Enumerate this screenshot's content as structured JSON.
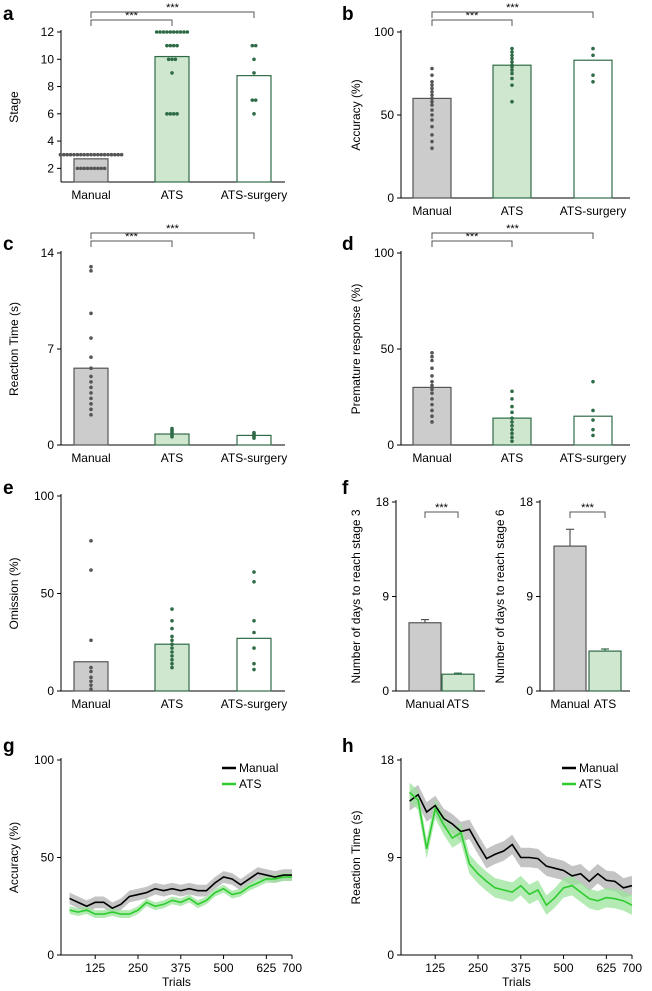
{
  "colors": {
    "manual_fill": "#cccccc",
    "manual_edge": "#555555",
    "manual_dot": "#555555",
    "ats_fill": "#cfe6cf",
    "ats_edge": "#2f6b46",
    "ats_dot": "#2f6b46",
    "surg_fill": "#ffffff",
    "surg_edge": "#2f6b46",
    "surg_dot": "#2f6b46",
    "line_manual": "#000000",
    "band_manual": "#b0b0b0",
    "line_ats": "#2ecc2e",
    "band_ats": "#9be39b",
    "axis": "#000000"
  },
  "chart_data": [
    {
      "panel": "a",
      "type": "bar",
      "ylabel": "Stage",
      "categories": [
        "Manual",
        "ATS",
        "ATS-surgery"
      ],
      "values": [
        2.7,
        10.2,
        8.8
      ],
      "ylim": [
        1,
        12
      ],
      "yticks": [
        2,
        4,
        6,
        8,
        10,
        12
      ],
      "points": [
        [
          2,
          2,
          2,
          2,
          2,
          2,
          2,
          2,
          2,
          3,
          3,
          3,
          3,
          3,
          3,
          3,
          3,
          3,
          3,
          3,
          3,
          3,
          3,
          3,
          3,
          3,
          3,
          3
        ],
        [
          6,
          6,
          6,
          6,
          9,
          10,
          10,
          10,
          11,
          11,
          11,
          11,
          12,
          12,
          12,
          12,
          12,
          12,
          12,
          12,
          12,
          12
        ],
        [
          6,
          7,
          7,
          9,
          10,
          11,
          11
        ]
      ],
      "sig": [
        {
          "from": 0,
          "to": 1,
          "label": "***"
        },
        {
          "from": 0,
          "to": 2,
          "label": "***"
        }
      ]
    },
    {
      "panel": "b",
      "type": "bar",
      "ylabel": "Accuracy (%)",
      "categories": [
        "Manual",
        "ATS",
        "ATS-surgery"
      ],
      "values": [
        60,
        80,
        83
      ],
      "ylim": [
        0,
        100
      ],
      "yticks": [
        0,
        50,
        100
      ],
      "points": [
        [
          30,
          34,
          38,
          43,
          47,
          50,
          53,
          56,
          58,
          60,
          62,
          64,
          66,
          68,
          70,
          74,
          78
        ],
        [
          58,
          68,
          72,
          75,
          77,
          79,
          80,
          82,
          84,
          86,
          88,
          90
        ],
        [
          70,
          74,
          86,
          90
        ]
      ],
      "sig": [
        {
          "from": 0,
          "to": 1,
          "label": "***"
        },
        {
          "from": 0,
          "to": 2,
          "label": "***"
        }
      ]
    },
    {
      "panel": "c",
      "type": "bar",
      "ylabel": "Reaction Time (s)",
      "categories": [
        "Manual",
        "ATS",
        "ATS-surgery"
      ],
      "values": [
        5.6,
        0.8,
        0.7
      ],
      "ylim": [
        0,
        14
      ],
      "yticks": [
        0,
        7,
        14
      ],
      "points": [
        [
          2.2,
          2.6,
          3.0,
          3.4,
          3.8,
          4.2,
          4.6,
          5.0,
          5.6,
          6.4,
          7.8,
          9.6,
          12.7,
          13.0
        ],
        [
          0.6,
          0.7,
          0.8,
          0.9,
          1.0,
          1.1,
          1.2
        ],
        [
          0.5,
          0.6,
          0.7,
          0.8,
          0.9
        ]
      ],
      "sig": [
        {
          "from": 0,
          "to": 1,
          "label": "***"
        },
        {
          "from": 0,
          "to": 2,
          "label": "***"
        }
      ]
    },
    {
      "panel": "d",
      "type": "bar",
      "ylabel": "Premature response     (%)",
      "categories": [
        "Manual",
        "ATS",
        "ATS-surgery"
      ],
      "values": [
        30,
        14,
        15
      ],
      "ylim": [
        0,
        100
      ],
      "yticks": [
        0,
        50,
        100
      ],
      "points": [
        [
          12,
          15,
          18,
          21,
          24,
          27,
          29,
          31,
          33,
          36,
          40,
          44,
          46,
          48
        ],
        [
          2,
          4,
          6,
          8,
          10,
          12,
          14,
          17,
          20,
          24,
          28
        ],
        [
          5,
          8,
          13,
          18,
          33
        ]
      ],
      "sig": [
        {
          "from": 0,
          "to": 1,
          "label": "***"
        },
        {
          "from": 0,
          "to": 2,
          "label": "***"
        }
      ]
    },
    {
      "panel": "e",
      "type": "bar",
      "ylabel": "Omission (%)",
      "categories": [
        "Manual",
        "ATS",
        "ATS-surgery"
      ],
      "values": [
        15,
        24,
        27
      ],
      "ylim": [
        0,
        100
      ],
      "yticks": [
        0,
        50,
        100
      ],
      "points": [
        [
          1,
          3,
          5,
          7,
          10,
          12,
          26,
          62,
          77
        ],
        [
          12,
          14,
          16,
          18,
          20,
          22,
          24,
          26,
          28,
          32,
          36,
          42
        ],
        [
          11,
          14,
          22,
          30,
          36,
          56,
          61
        ]
      ],
      "sig": []
    },
    {
      "panel": "f1",
      "type": "bar",
      "ylabel": "Number of days to reach stage 3",
      "categories": [
        "Manual",
        "ATS"
      ],
      "values": [
        6.5,
        1.6
      ],
      "errors": [
        0.3,
        0.1
      ],
      "ylim": [
        0,
        18
      ],
      "yticks": [
        0,
        9,
        18
      ],
      "sig": [
        {
          "from": 0,
          "to": 1,
          "label": "***"
        }
      ]
    },
    {
      "panel": "f2",
      "type": "bar",
      "ylabel": "Number of days to reach stage 6",
      "categories": [
        "Manual",
        "ATS"
      ],
      "values": [
        13.8,
        3.8
      ],
      "errors": [
        1.6,
        0.2
      ],
      "ylim": [
        0,
        18
      ],
      "yticks": [
        0,
        9,
        18
      ],
      "sig": [
        {
          "from": 0,
          "to": 1,
          "label": "***"
        }
      ]
    },
    {
      "panel": "g",
      "type": "line",
      "xlabel": "Trials",
      "ylabel": "Accuracy (%)",
      "xlim": [
        25,
        700
      ],
      "ylim": [
        0,
        100
      ],
      "xticks": [
        125,
        250,
        375,
        500,
        625,
        700
      ],
      "yticks": [
        0,
        50,
        100
      ],
      "x": [
        50,
        75,
        100,
        125,
        150,
        175,
        200,
        225,
        250,
        275,
        300,
        325,
        350,
        375,
        400,
        425,
        450,
        475,
        500,
        525,
        550,
        575,
        600,
        625,
        650,
        675,
        700
      ],
      "series": [
        {
          "name": "Manual",
          "values": [
            29,
            27,
            25,
            27,
            27,
            24,
            26,
            30,
            31,
            32,
            34,
            33,
            34,
            33,
            34,
            33,
            33,
            37,
            40,
            39,
            36,
            39,
            42,
            41,
            40,
            41,
            41
          ],
          "sem": 3
        },
        {
          "name": "ATS",
          "values": [
            23,
            22,
            23,
            21,
            21,
            22,
            21,
            21,
            23,
            27,
            25,
            26,
            28,
            27,
            29,
            26,
            28,
            32,
            34,
            31,
            32,
            35,
            37,
            39,
            39,
            40,
            40
          ],
          "sem": 2
        }
      ]
    },
    {
      "panel": "h",
      "type": "line",
      "xlabel": "Trials",
      "ylabel": "Reaction Time (s)",
      "xlim": [
        25,
        700
      ],
      "ylim": [
        0,
        18
      ],
      "xticks": [
        125,
        250,
        375,
        500,
        625,
        700
      ],
      "yticks": [
        0,
        9,
        18
      ],
      "x": [
        50,
        75,
        100,
        125,
        150,
        175,
        200,
        225,
        250,
        275,
        300,
        325,
        350,
        375,
        400,
        425,
        450,
        475,
        500,
        525,
        550,
        575,
        600,
        625,
        650,
        675,
        700
      ],
      "series": [
        {
          "name": "Manual",
          "values": [
            14.2,
            14.8,
            13.2,
            13.8,
            12.6,
            12.1,
            11.4,
            11.6,
            10.2,
            8.9,
            9.3,
            9.6,
            10.2,
            9.0,
            9.0,
            8.9,
            8.2,
            8.0,
            7.8,
            7.3,
            7.5,
            6.8,
            7.5,
            6.9,
            6.8,
            6.2,
            6.4
          ],
          "sem": 0.9
        },
        {
          "name": "ATS",
          "values": [
            15.0,
            14.3,
            9.8,
            13.5,
            12.0,
            10.8,
            11.3,
            8.4,
            7.5,
            6.8,
            6.2,
            6.0,
            5.8,
            6.4,
            5.6,
            6.0,
            4.6,
            5.3,
            6.2,
            6.4,
            5.8,
            5.2,
            5.0,
            5.3,
            5.2,
            5.0,
            4.6
          ],
          "sem": 0.9
        }
      ]
    }
  ]
}
